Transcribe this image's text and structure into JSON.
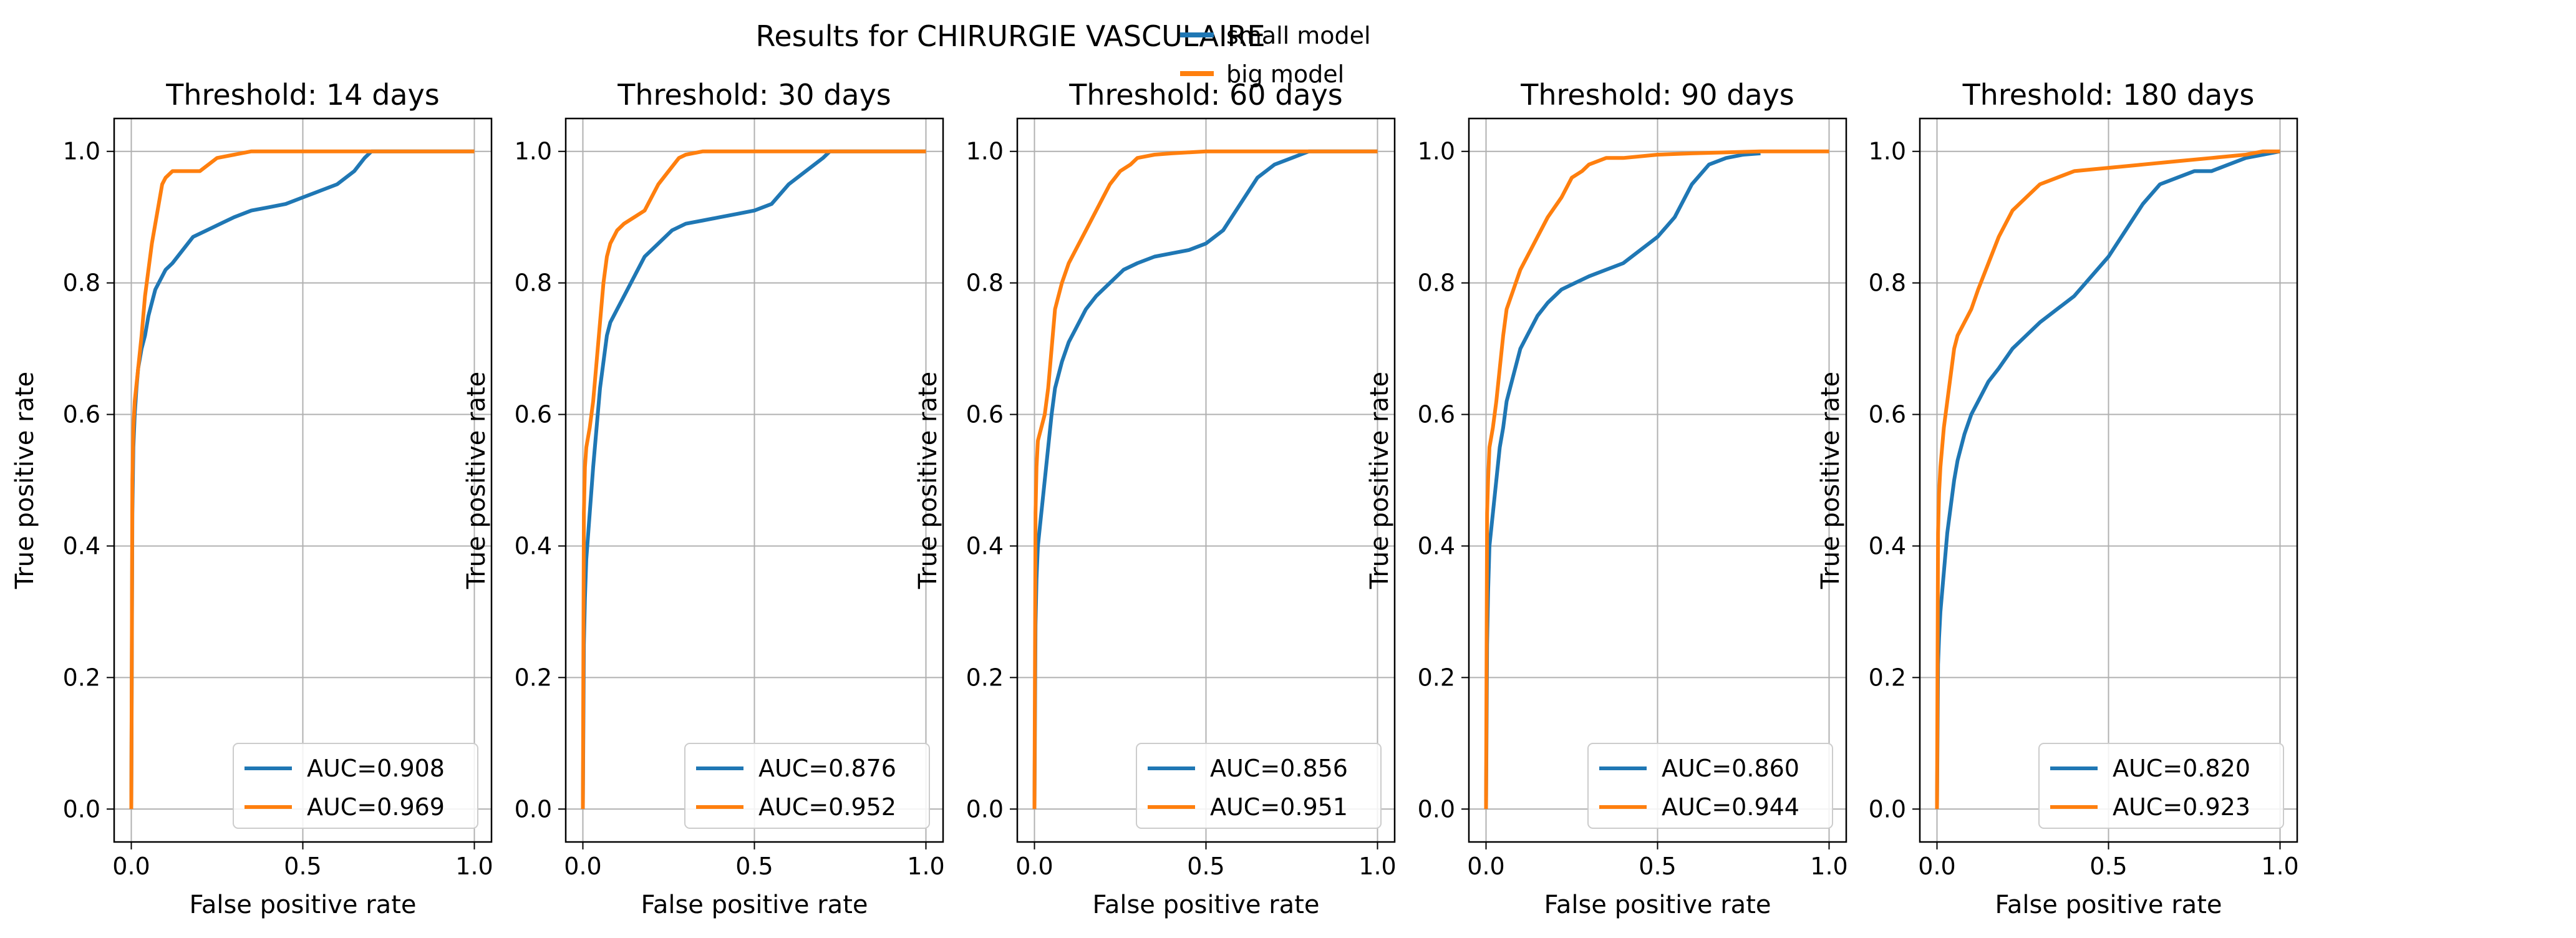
{
  "title": "Results for CHIRURGIE VASCULAIRE",
  "legend": {
    "entries": [
      {
        "label": "small model",
        "color": "#1f77b4"
      },
      {
        "label": "big model",
        "color": "#ff7f0e"
      }
    ]
  },
  "chart_data": [
    {
      "type": "line",
      "title": "Threshold: 14 days",
      "xlabel": "False positive rate",
      "ylabel": "True positive rate",
      "xlim": [
        -0.05,
        1.05
      ],
      "ylim": [
        -0.05,
        1.05
      ],
      "xticks": [
        "0.0",
        "0.5",
        "1.0"
      ],
      "yticks": [
        "0.0",
        "0.2",
        "0.4",
        "0.6",
        "0.8",
        "1.0"
      ],
      "grid": true,
      "legend_position": "lower-right",
      "series": [
        {
          "name": "small model",
          "label": "AUC=0.908",
          "color": "#1f77b4",
          "x": [
            0,
            0.003,
            0.006,
            0.01,
            0.015,
            0.02,
            0.03,
            0.04,
            0.05,
            0.06,
            0.07,
            0.08,
            0.1,
            0.12,
            0.15,
            0.18,
            0.22,
            0.26,
            0.3,
            0.35,
            0.4,
            0.45,
            0.5,
            0.55,
            0.6,
            0.65,
            0.68,
            0.7,
            1.0
          ],
          "y": [
            0,
            0.45,
            0.55,
            0.6,
            0.64,
            0.67,
            0.7,
            0.72,
            0.75,
            0.77,
            0.79,
            0.8,
            0.82,
            0.83,
            0.85,
            0.87,
            0.88,
            0.89,
            0.9,
            0.91,
            0.915,
            0.92,
            0.93,
            0.94,
            0.95,
            0.97,
            0.99,
            1.0,
            1.0
          ]
        },
        {
          "name": "big model",
          "label": "AUC=0.969",
          "color": "#ff7f0e",
          "x": [
            0,
            0.003,
            0.006,
            0.01,
            0.02,
            0.03,
            0.04,
            0.05,
            0.06,
            0.07,
            0.08,
            0.09,
            0.1,
            0.12,
            0.15,
            0.2,
            0.25,
            0.3,
            0.35,
            0.5,
            1.0
          ],
          "y": [
            0,
            0.5,
            0.58,
            0.62,
            0.67,
            0.72,
            0.78,
            0.82,
            0.86,
            0.89,
            0.92,
            0.95,
            0.96,
            0.97,
            0.97,
            0.97,
            0.99,
            0.995,
            1.0,
            1.0,
            1.0
          ]
        }
      ]
    },
    {
      "type": "line",
      "title": "Threshold: 30 days",
      "xlabel": "False positive rate",
      "ylabel": "True positive rate",
      "xlim": [
        -0.05,
        1.05
      ],
      "ylim": [
        -0.05,
        1.05
      ],
      "xticks": [
        "0.0",
        "0.5",
        "1.0"
      ],
      "yticks": [
        "0.0",
        "0.2",
        "0.4",
        "0.6",
        "0.8",
        "1.0"
      ],
      "grid": true,
      "legend_position": "lower-right",
      "series": [
        {
          "name": "small model",
          "label": "AUC=0.876",
          "color": "#1f77b4",
          "x": [
            0,
            0.003,
            0.006,
            0.01,
            0.02,
            0.03,
            0.04,
            0.05,
            0.06,
            0.07,
            0.08,
            0.1,
            0.12,
            0.15,
            0.18,
            0.22,
            0.26,
            0.3,
            0.35,
            0.4,
            0.45,
            0.5,
            0.55,
            0.6,
            0.65,
            0.7,
            0.72,
            1.0
          ],
          "y": [
            0,
            0.25,
            0.32,
            0.38,
            0.45,
            0.52,
            0.58,
            0.64,
            0.68,
            0.72,
            0.74,
            0.76,
            0.78,
            0.81,
            0.84,
            0.86,
            0.88,
            0.89,
            0.895,
            0.9,
            0.905,
            0.91,
            0.92,
            0.95,
            0.97,
            0.99,
            1.0,
            1.0
          ]
        },
        {
          "name": "big model",
          "label": "AUC=0.952",
          "color": "#ff7f0e",
          "x": [
            0,
            0.003,
            0.006,
            0.01,
            0.02,
            0.03,
            0.04,
            0.05,
            0.06,
            0.07,
            0.08,
            0.1,
            0.12,
            0.15,
            0.18,
            0.2,
            0.22,
            0.25,
            0.28,
            0.3,
            0.35,
            0.4,
            1.0
          ],
          "y": [
            0,
            0.45,
            0.52,
            0.55,
            0.58,
            0.62,
            0.68,
            0.74,
            0.8,
            0.84,
            0.86,
            0.88,
            0.89,
            0.9,
            0.91,
            0.93,
            0.95,
            0.97,
            0.99,
            0.995,
            1.0,
            1.0,
            1.0
          ]
        }
      ]
    },
    {
      "type": "line",
      "title": "Threshold: 60 days",
      "xlabel": "False positive rate",
      "ylabel": "True positive rate",
      "xlim": [
        -0.05,
        1.05
      ],
      "ylim": [
        -0.05,
        1.05
      ],
      "xticks": [
        "0.0",
        "0.5",
        "1.0"
      ],
      "yticks": [
        "0.0",
        "0.2",
        "0.4",
        "0.6",
        "0.8",
        "1.0"
      ],
      "grid": true,
      "legend_position": "lower-right",
      "series": [
        {
          "name": "small model",
          "label": "AUC=0.856",
          "color": "#1f77b4",
          "x": [
            0,
            0.003,
            0.006,
            0.01,
            0.02,
            0.03,
            0.04,
            0.05,
            0.06,
            0.08,
            0.1,
            0.12,
            0.15,
            0.18,
            0.22,
            0.26,
            0.3,
            0.35,
            0.4,
            0.45,
            0.5,
            0.55,
            0.6,
            0.65,
            0.7,
            0.75,
            0.8,
            1.0
          ],
          "y": [
            0,
            0.28,
            0.35,
            0.4,
            0.45,
            0.5,
            0.55,
            0.6,
            0.64,
            0.68,
            0.71,
            0.73,
            0.76,
            0.78,
            0.8,
            0.82,
            0.83,
            0.84,
            0.845,
            0.85,
            0.86,
            0.88,
            0.92,
            0.96,
            0.98,
            0.99,
            1.0,
            1.0
          ]
        },
        {
          "name": "big model",
          "label": "AUC=0.951",
          "color": "#ff7f0e",
          "x": [
            0,
            0.003,
            0.006,
            0.01,
            0.02,
            0.03,
            0.04,
            0.05,
            0.06,
            0.08,
            0.1,
            0.12,
            0.15,
            0.18,
            0.2,
            0.22,
            0.25,
            0.28,
            0.3,
            0.35,
            0.4,
            0.5,
            0.6,
            0.8,
            1.0
          ],
          "y": [
            0,
            0.45,
            0.52,
            0.56,
            0.58,
            0.6,
            0.64,
            0.7,
            0.76,
            0.8,
            0.83,
            0.85,
            0.88,
            0.91,
            0.93,
            0.95,
            0.97,
            0.98,
            0.99,
            0.995,
            0.997,
            1.0,
            1.0,
            1.0,
            1.0
          ]
        }
      ]
    },
    {
      "type": "line",
      "title": "Threshold: 90 days",
      "xlabel": "False positive rate",
      "ylabel": "True positive rate",
      "xlim": [
        -0.05,
        1.05
      ],
      "ylim": [
        -0.05,
        1.05
      ],
      "xticks": [
        "0.0",
        "0.5",
        "1.0"
      ],
      "yticks": [
        "0.0",
        "0.2",
        "0.4",
        "0.6",
        "0.8",
        "1.0"
      ],
      "grid": true,
      "legend_position": "lower-right",
      "series": [
        {
          "name": "small model",
          "label": "AUC=0.860",
          "color": "#1f77b4",
          "x": [
            0,
            0.003,
            0.006,
            0.01,
            0.02,
            0.03,
            0.04,
            0.05,
            0.06,
            0.08,
            0.1,
            0.12,
            0.15,
            0.18,
            0.22,
            0.26,
            0.3,
            0.35,
            0.4,
            0.45,
            0.5,
            0.55,
            0.6,
            0.65,
            0.7,
            0.75,
            0.8
          ],
          "y": [
            0,
            0.25,
            0.33,
            0.4,
            0.45,
            0.5,
            0.55,
            0.58,
            0.62,
            0.66,
            0.7,
            0.72,
            0.75,
            0.77,
            0.79,
            0.8,
            0.81,
            0.82,
            0.83,
            0.85,
            0.87,
            0.9,
            0.95,
            0.98,
            0.99,
            0.995,
            0.997
          ]
        },
        {
          "name": "big model",
          "label": "AUC=0.944",
          "color": "#ff7f0e",
          "x": [
            0,
            0.003,
            0.006,
            0.01,
            0.02,
            0.03,
            0.04,
            0.05,
            0.06,
            0.08,
            0.1,
            0.12,
            0.15,
            0.18,
            0.22,
            0.25,
            0.28,
            0.3,
            0.35,
            0.4,
            0.5,
            0.6,
            0.8,
            1.0
          ],
          "y": [
            0,
            0.45,
            0.5,
            0.55,
            0.58,
            0.62,
            0.67,
            0.72,
            0.76,
            0.79,
            0.82,
            0.84,
            0.87,
            0.9,
            0.93,
            0.96,
            0.97,
            0.98,
            0.99,
            0.99,
            0.995,
            0.997,
            1.0,
            1.0
          ]
        }
      ]
    },
    {
      "type": "line",
      "title": "Threshold: 180 days",
      "xlabel": "False positive rate",
      "ylabel": "True positive rate",
      "xlim": [
        -0.05,
        1.05
      ],
      "ylim": [
        -0.05,
        1.05
      ],
      "xticks": [
        "0.0",
        "0.5",
        "1.0"
      ],
      "yticks": [
        "0.0",
        "0.2",
        "0.4",
        "0.6",
        "0.8",
        "1.0"
      ],
      "grid": true,
      "legend_position": "lower-right",
      "series": [
        {
          "name": "small model",
          "label": "AUC=0.820",
          "color": "#1f77b4",
          "x": [
            0,
            0.003,
            0.006,
            0.01,
            0.02,
            0.03,
            0.04,
            0.05,
            0.06,
            0.08,
            0.1,
            0.12,
            0.15,
            0.18,
            0.22,
            0.26,
            0.3,
            0.35,
            0.4,
            0.45,
            0.5,
            0.55,
            0.6,
            0.65,
            0.7,
            0.75,
            0.8,
            0.85,
            0.9,
            0.95,
            1.0
          ],
          "y": [
            0,
            0.22,
            0.26,
            0.3,
            0.36,
            0.42,
            0.46,
            0.5,
            0.53,
            0.57,
            0.6,
            0.62,
            0.65,
            0.67,
            0.7,
            0.72,
            0.74,
            0.76,
            0.78,
            0.81,
            0.84,
            0.88,
            0.92,
            0.95,
            0.96,
            0.97,
            0.97,
            0.98,
            0.99,
            0.995,
            1.0
          ]
        },
        {
          "name": "big model",
          "label": "AUC=0.923",
          "color": "#ff7f0e",
          "x": [
            0,
            0.003,
            0.006,
            0.01,
            0.02,
            0.03,
            0.04,
            0.05,
            0.06,
            0.08,
            0.1,
            0.12,
            0.15,
            0.18,
            0.22,
            0.26,
            0.3,
            0.35,
            0.4,
            0.5,
            0.6,
            0.7,
            0.8,
            0.9,
            0.95,
            1.0
          ],
          "y": [
            0,
            0.42,
            0.48,
            0.52,
            0.58,
            0.62,
            0.66,
            0.7,
            0.72,
            0.74,
            0.76,
            0.79,
            0.83,
            0.87,
            0.91,
            0.93,
            0.95,
            0.96,
            0.97,
            0.975,
            0.98,
            0.985,
            0.99,
            0.995,
            1.0,
            1.0
          ]
        }
      ]
    }
  ]
}
